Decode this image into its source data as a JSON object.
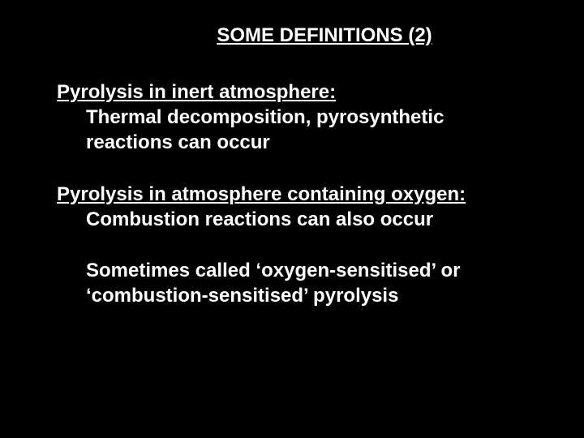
{
  "slide": {
    "background_color": "#000000",
    "text_color": "#ffffff",
    "font_family": "Arial",
    "title": "SOME DEFINITIONS (2)",
    "title_fontsize": 24,
    "title_fontweight": "bold",
    "title_underline": true,
    "body_fontsize": 24,
    "body_fontweight": "bold",
    "sections": [
      {
        "heading": "Pyrolysis in inert atmosphere:",
        "heading_underline": true,
        "body": "Thermal decomposition, pyrosynthetic reactions can occur"
      },
      {
        "heading": "Pyrolysis in atmosphere containing oxygen:",
        "heading_underline": true,
        "body": "Combustion reactions can also occur"
      },
      {
        "heading": "",
        "body": "Sometimes called ‘oxygen-sensitised’ or ‘combustion-sensitised’ pyrolysis"
      }
    ]
  }
}
